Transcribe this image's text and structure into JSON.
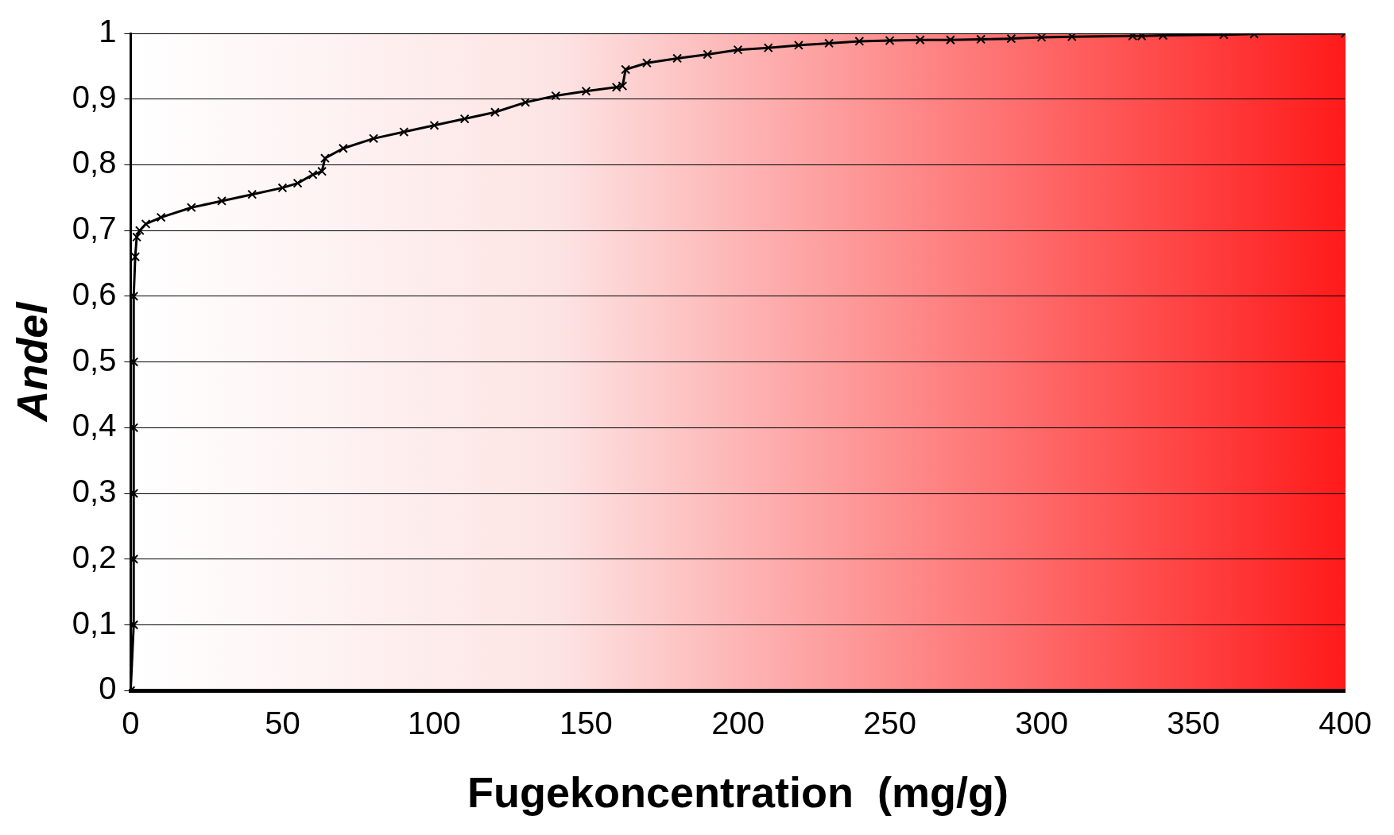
{
  "chart_data": {
    "type": "line",
    "xlabel": "Fugekoncentration  (mg/g)",
    "ylabel": "Andel",
    "xlim": [
      0,
      400
    ],
    "xticks": [
      0,
      50,
      100,
      150,
      200,
      250,
      300,
      350,
      400
    ],
    "ylim": [
      0,
      1
    ],
    "yticks": [
      0,
      {
        "value": 0.1,
        "label": "0,1"
      },
      {
        "value": 0.2,
        "label": "0,2"
      },
      {
        "value": 0.3,
        "label": "0,3"
      },
      {
        "value": 0.4,
        "label": "0,4"
      },
      {
        "value": 0.5,
        "label": "0,5"
      },
      {
        "value": 0.6,
        "label": "0,6"
      },
      {
        "value": 0.7,
        "label": "0,7"
      },
      {
        "value": 0.8,
        "label": "0,8"
      },
      {
        "value": 0.9,
        "label": "0,9"
      },
      1
    ],
    "grid": "y",
    "legend": false,
    "marker": "cross",
    "line_style": "solid",
    "series": [
      {
        "color": "#000000",
        "x": [
          0,
          1,
          1,
          1,
          1,
          1,
          1,
          1.5,
          2,
          3,
          5,
          10,
          20,
          30,
          40,
          50,
          55,
          60,
          63,
          64,
          70,
          80,
          90,
          100,
          110,
          120,
          130,
          140,
          150,
          160,
          162,
          163,
          170,
          180,
          190,
          200,
          210,
          220,
          230,
          240,
          250,
          260,
          270,
          280,
          290,
          300,
          310,
          330,
          333,
          340,
          360,
          370,
          400
        ],
        "values": [
          0,
          0.1,
          0.2,
          0.3,
          0.4,
          0.5,
          0.6,
          0.66,
          0.69,
          0.7,
          0.71,
          0.72,
          0.735,
          0.745,
          0.755,
          0.765,
          0.772,
          0.785,
          0.79,
          0.81,
          0.825,
          0.84,
          0.85,
          0.86,
          0.87,
          0.88,
          0.895,
          0.905,
          0.912,
          0.918,
          0.92,
          0.945,
          0.955,
          0.962,
          0.968,
          0.975,
          0.978,
          0.982,
          0.985,
          0.988,
          0.989,
          0.99,
          0.99,
          0.991,
          0.992,
          0.994,
          0.995,
          0.996,
          0.996,
          0.997,
          0.998,
          0.999,
          1
        ]
      }
    ]
  }
}
